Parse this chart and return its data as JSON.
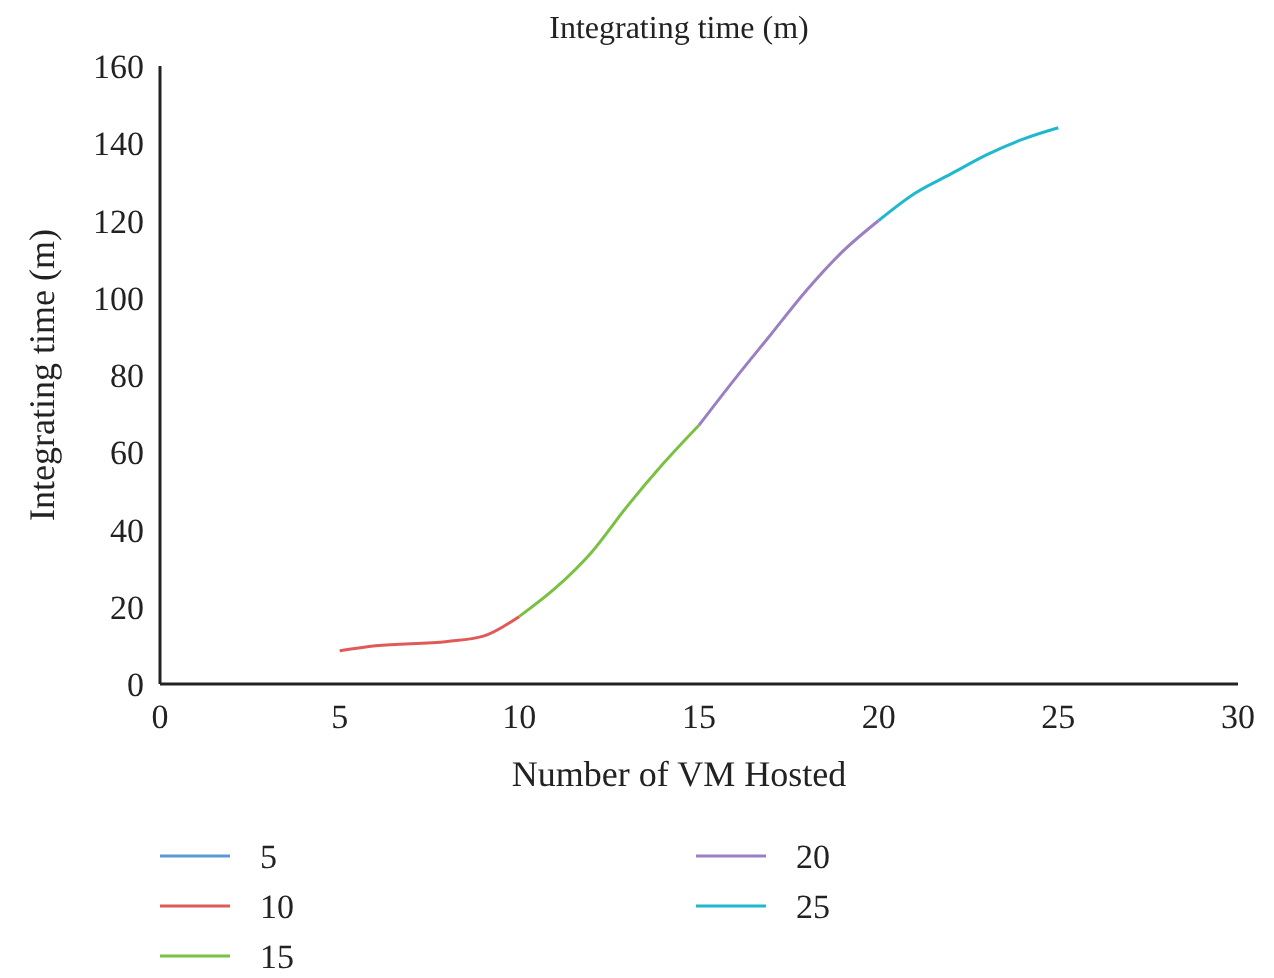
{
  "chart_data": {
    "type": "line",
    "title": "Integrating time (m)",
    "xlabel": "Number of VM Hosted",
    "ylabel": "Integrating time (m)",
    "xlim": [
      0,
      30
    ],
    "xticks": [
      0,
      5,
      10,
      15,
      20,
      25,
      30
    ],
    "ylim": [
      0,
      160
    ],
    "yticks": [
      0,
      20,
      40,
      60,
      80,
      100,
      120,
      140,
      160
    ],
    "grid": false,
    "legend": "bottom",
    "series": [
      {
        "name": "5",
        "color": "#5b9bd5"
      },
      {
        "name": "10",
        "color": "#e05a5a",
        "x": [
          5,
          6,
          8,
          9,
          10
        ],
        "values": [
          8.6,
          9.9,
          11,
          12.4,
          17.5
        ]
      },
      {
        "name": "15",
        "color": "#7ac143",
        "x": [
          10,
          11,
          12,
          13,
          14,
          15
        ],
        "values": [
          17.5,
          24.8,
          34,
          46,
          57,
          67
        ]
      },
      {
        "name": "20",
        "color": "#9b7fc4",
        "x": [
          15,
          16,
          17,
          18,
          19,
          20
        ],
        "values": [
          67,
          79,
          90.5,
          102,
          112,
          120
        ]
      },
      {
        "name": "25",
        "color": "#1fb8cf",
        "x": [
          20,
          21,
          22,
          23,
          24,
          25
        ],
        "values": [
          120,
          127,
          132,
          137,
          141,
          144
        ]
      }
    ]
  }
}
